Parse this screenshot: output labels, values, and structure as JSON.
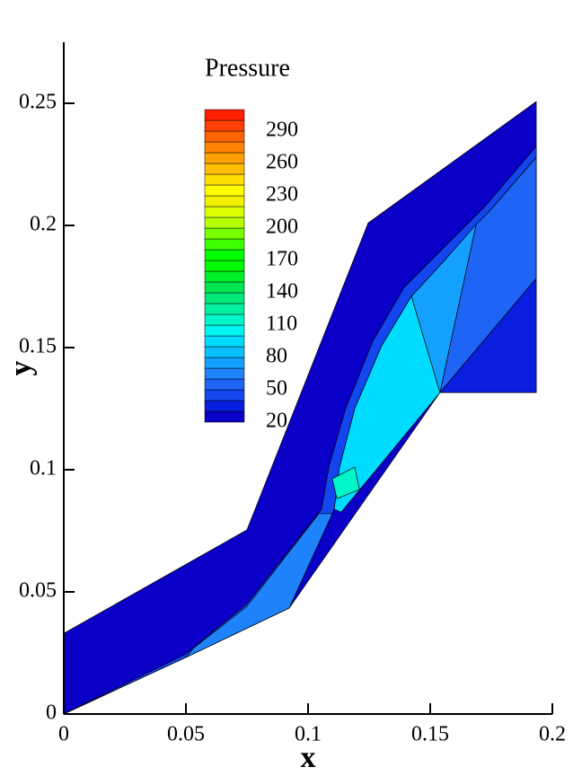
{
  "chart_data": {
    "type": "contour",
    "xlabel": "x",
    "ylabel": "y",
    "xlim": [
      0,
      0.2
    ],
    "ylim": [
      0,
      0.275
    ],
    "xticks": [
      0,
      0.05,
      0.1,
      0.15,
      0.2
    ],
    "yticks": [
      0,
      0.05,
      0.1,
      0.15,
      0.2,
      0.25
    ],
    "colorbar": {
      "title": "Pressure",
      "levels": [
        20,
        30,
        40,
        50,
        60,
        70,
        80,
        90,
        100,
        110,
        120,
        130,
        140,
        150,
        160,
        170,
        180,
        190,
        200,
        210,
        220,
        230,
        240,
        250,
        260,
        270,
        280,
        290,
        300,
        310
      ],
      "ticks": [
        290,
        260,
        230,
        200,
        170,
        140,
        110,
        80,
        50,
        20
      ],
      "colors": [
        "#0a00c8",
        "#0a1ee0",
        "#1446f0",
        "#1e64f5",
        "#1e82fa",
        "#14a0ff",
        "#0ac0ff",
        "#00dcff",
        "#00f5f0",
        "#00f5c8",
        "#00f0a0",
        "#00e878",
        "#00e650",
        "#00f028",
        "#00fa00",
        "#00ff00",
        "#3cff00",
        "#78ff00",
        "#b4ff00",
        "#dcff00",
        "#f0f000",
        "#ffff00",
        "#ffdc00",
        "#ffbe00",
        "#ffa000",
        "#ff8200",
        "#ff6400",
        "#ff4000",
        "#ff2000"
      ]
    },
    "regions": [
      {
        "value": 25,
        "points": [
          [
            0,
            0.033
          ],
          [
            0.075,
            0.0754
          ],
          [
            0.1246,
            0.201
          ],
          [
            0.1934,
            0.2507
          ],
          [
            0.1934,
            0.1316
          ],
          [
            0.154,
            0.1316
          ],
          [
            0.0923,
            0.0434
          ],
          [
            0.05,
            0.0232
          ],
          [
            0,
            0
          ]
        ]
      },
      {
        "value": 45,
        "points": [
          [
            0,
            0
          ],
          [
            0.05,
            0.0246
          ],
          [
            0.075,
            0.0452
          ],
          [
            0.1055,
            0.0838
          ],
          [
            0.1085,
            0.1011
          ],
          [
            0.1154,
            0.125
          ],
          [
            0.1265,
            0.1526
          ],
          [
            0.1393,
            0.1746
          ],
          [
            0.154,
            0.1893
          ],
          [
            0.1724,
            0.2077
          ],
          [
            0.1934,
            0.2324
          ],
          [
            0.1934,
            0.2279
          ],
          [
            0.1743,
            0.2059
          ],
          [
            0.1559,
            0.1857
          ],
          [
            0.1423,
            0.171
          ],
          [
            0.1301,
            0.1507
          ],
          [
            0.1191,
            0.125
          ],
          [
            0.1129,
            0.1011
          ],
          [
            0.1107,
            0.0838
          ],
          [
            0.0923,
            0.0434
          ],
          [
            0.05,
            0.0232
          ]
        ]
      },
      {
        "value": 65,
        "points": [
          [
            0.0529,
            0.0268
          ],
          [
            0.075,
            0.0441
          ],
          [
            0.1044,
            0.082
          ],
          [
            0.1099,
            0.082
          ],
          [
            0.0923,
            0.0434
          ],
          [
            0.05,
            0.0232
          ]
        ]
      },
      {
        "value": 95,
        "points": [
          [
            0.1107,
            0.0838
          ],
          [
            0.1129,
            0.1011
          ],
          [
            0.1191,
            0.125
          ],
          [
            0.1301,
            0.1507
          ],
          [
            0.1423,
            0.171
          ],
          [
            0.154,
            0.1316
          ],
          [
            0.1136,
            0.0827
          ]
        ]
      },
      {
        "value": 75,
        "points": [
          [
            0.1423,
            0.171
          ],
          [
            0.1559,
            0.1857
          ],
          [
            0.1688,
            0.2004
          ],
          [
            0.154,
            0.1316
          ]
        ]
      },
      {
        "value": 55,
        "points": [
          [
            0.1688,
            0.2004
          ],
          [
            0.1743,
            0.2059
          ],
          [
            0.1934,
            0.2279
          ],
          [
            0.1934,
            0.1783
          ],
          [
            0.154,
            0.1316
          ]
        ]
      },
      {
        "value": 35,
        "points": [
          [
            0.1934,
            0.1783
          ],
          [
            0.1934,
            0.1316
          ],
          [
            0.154,
            0.1316
          ]
        ]
      },
      {
        "value": 115,
        "points": [
          [
            0.1099,
            0.0963
          ],
          [
            0.1191,
            0.1011
          ],
          [
            0.121,
            0.0919
          ],
          [
            0.1118,
            0.0882
          ]
        ]
      }
    ]
  }
}
